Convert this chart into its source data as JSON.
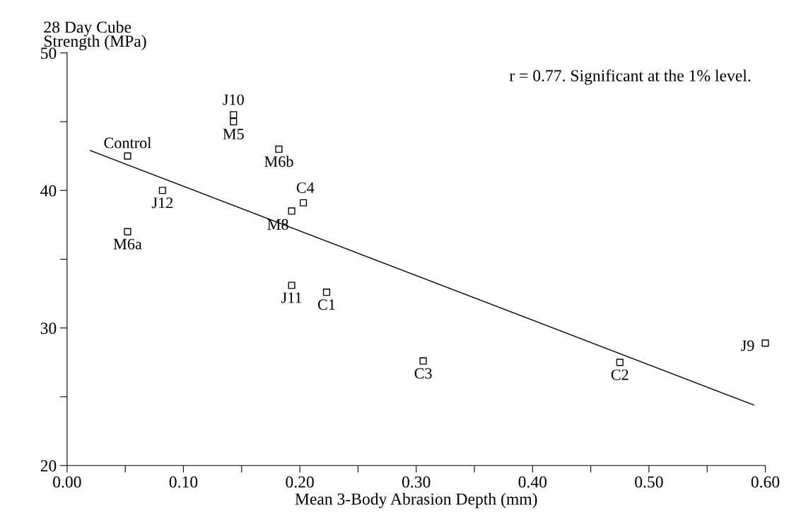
{
  "chart_data": {
    "type": "scatter",
    "xlabel": "Mean 3-Body Abrasion Depth (mm)",
    "ylabel": "28 Day Cube\nStrength (MPa)",
    "series": [
      {
        "color": "#000000",
        "marker": "square",
        "x": [
          0.052,
          0.082,
          0.052,
          0.143,
          0.143,
          0.182,
          0.203,
          0.193,
          0.193,
          0.223,
          0.306,
          0.475,
          0.6
        ],
        "values": [
          42.5,
          40.0,
          37.0,
          45.5,
          45.0,
          43.0,
          39.1,
          38.5,
          33.1,
          32.6,
          27.6,
          27.5,
          28.9
        ]
      },
      {
        "type": "line",
        "color": "#000000",
        "marker": "none",
        "line_style": "solid",
        "x": [
          0.02,
          0.59
        ],
        "values": [
          42.9,
          24.4
        ]
      }
    ],
    "annotations": [
      {
        "text": "Control",
        "x": 0.052,
        "y": 42.5
      },
      {
        "text": "J12",
        "x": 0.082,
        "y": 40.0
      },
      {
        "text": "M6a",
        "x": 0.052,
        "y": 37.0
      },
      {
        "text": "J10",
        "x": 0.143,
        "y": 45.5
      },
      {
        "text": "M5",
        "x": 0.143,
        "y": 45.0
      },
      {
        "text": "M6b",
        "x": 0.182,
        "y": 43.0
      },
      {
        "text": "C4",
        "x": 0.203,
        "y": 39.1
      },
      {
        "text": "M8",
        "x": 0.193,
        "y": 38.5
      },
      {
        "text": "J11",
        "x": 0.193,
        "y": 33.1
      },
      {
        "text": "C1",
        "x": 0.223,
        "y": 32.6
      },
      {
        "text": "C3",
        "x": 0.306,
        "y": 27.6
      },
      {
        "text": "C2",
        "x": 0.475,
        "y": 27.5
      },
      {
        "text": "J9",
        "x": 0.6,
        "y": 28.9
      },
      "r = 0.77. Significant at the 1% level."
    ],
    "xlim": [
      0,
      0.6
    ],
    "ylim": [
      20,
      50
    ],
    "xticks": [
      {
        "value": 0.0,
        "label": "0.00"
      },
      {
        "value": 0.05,
        "label": null
      },
      {
        "value": 0.1,
        "label": "0.10"
      },
      {
        "value": 0.15,
        "label": null
      },
      {
        "value": 0.2,
        "label": "0.20"
      },
      {
        "value": 0.25,
        "label": null
      },
      {
        "value": 0.3,
        "label": "0.30"
      },
      {
        "value": 0.35,
        "label": null
      },
      {
        "value": 0.4,
        "label": "0.40"
      },
      {
        "value": 0.45,
        "label": null
      },
      {
        "value": 0.5,
        "label": "0.50"
      },
      {
        "value": 0.55,
        "label": null
      },
      {
        "value": 0.6,
        "label": "0.60"
      }
    ],
    "yticks": [
      20,
      {
        "value": 25,
        "label": null
      },
      30,
      {
        "value": 35,
        "label": null
      },
      40,
      {
        "value": 45,
        "label": null
      },
      50
    ],
    "grid": false,
    "legend": false
  }
}
